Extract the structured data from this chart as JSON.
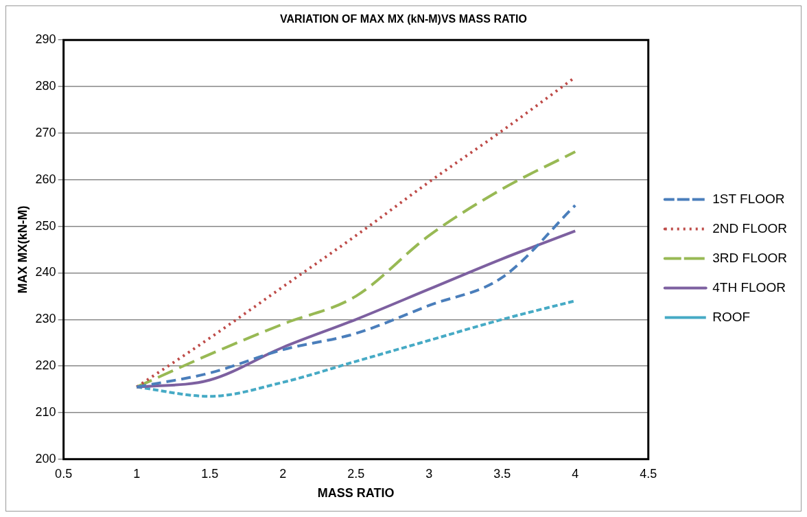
{
  "chart_data": {
    "type": "line",
    "title": "VARIATION OF MAX MX (kN-M)VS MASS RATIO",
    "xlabel": "MASS RATIO",
    "ylabel": "MAX MX(kN-M)",
    "x": [
      1,
      1.5,
      2,
      2.5,
      3,
      3.5,
      4
    ],
    "series": [
      {
        "name": "1ST FLOOR",
        "color": "#4a7ebb",
        "line_style": "dashed",
        "values": [
          215.5,
          218.5,
          223.5,
          227,
          233,
          239,
          254.5
        ]
      },
      {
        "name": "2ND FLOOR",
        "color": "#be4b48",
        "line_style": "dotted",
        "values": [
          215.5,
          226,
          237,
          248,
          259.5,
          270.5,
          282
        ]
      },
      {
        "name": "3RD FLOOR",
        "color": "#98b954",
        "line_style": "dashed",
        "values": [
          215.5,
          222.5,
          229,
          235,
          248,
          258,
          266
        ]
      },
      {
        "name": "4TH FLOOR",
        "color": "#7d60a0",
        "line_style": "solid",
        "values": [
          215.5,
          217,
          224,
          230,
          236.5,
          243,
          249
        ]
      },
      {
        "name": "ROOF",
        "color": "#46aac5",
        "line_style": "dashed",
        "values": [
          215.5,
          213.5,
          216.5,
          221,
          225.5,
          230,
          234
        ]
      }
    ],
    "xlim": [
      0.5,
      4.5
    ],
    "xticks": [
      0.5,
      1,
      1.5,
      2,
      2.5,
      3,
      3.5,
      4,
      4.5
    ],
    "ylim": [
      200,
      290
    ],
    "yticks": [
      200,
      210,
      220,
      230,
      240,
      250,
      260,
      270,
      280,
      290
    ],
    "grid": "y",
    "legend": "right",
    "marker": "none"
  }
}
